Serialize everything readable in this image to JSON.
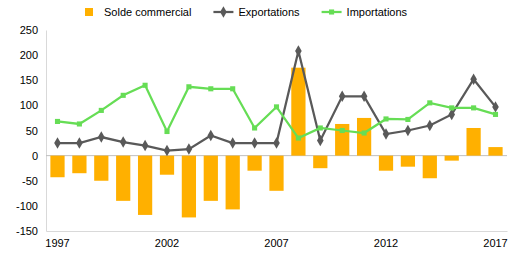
{
  "chart_data": {
    "type": "bar",
    "categories": [
      1997,
      null,
      null,
      null,
      null,
      2002,
      null,
      null,
      null,
      null,
      2007,
      null,
      null,
      null,
      null,
      2012,
      null,
      null,
      null,
      null,
      2017
    ],
    "series": [
      {
        "name": "Solde commercial",
        "type": "bar",
        "color": "#ffb000",
        "values": [
          -43,
          -35,
          -50,
          -90,
          -118,
          -38,
          -123,
          -90,
          -107,
          -30,
          -70,
          175,
          -25,
          63,
          75,
          -30,
          -22,
          -45,
          -10,
          55,
          17
        ]
      },
      {
        "name": "Exportations",
        "type": "line",
        "color": "#595959",
        "marker": "diamond",
        "line_style": "solid",
        "values": [
          25,
          25,
          37,
          27,
          20,
          10,
          13,
          40,
          25,
          25,
          25,
          208,
          30,
          118,
          118,
          43,
          50,
          60,
          82,
          152,
          97
        ]
      },
      {
        "name": "Importations",
        "type": "line",
        "color": "#66dd55",
        "marker": "square",
        "line_style": "solid",
        "values": [
          68,
          63,
          90,
          120,
          140,
          48,
          137,
          133,
          133,
          55,
          97,
          35,
          55,
          50,
          45,
          73,
          72,
          105,
          95,
          95,
          82
        ]
      }
    ],
    "ylim": [
      -150,
      250
    ],
    "yticks": [
      -150,
      -100,
      -50,
      0,
      50,
      100,
      150,
      200,
      250
    ],
    "grid": false,
    "legend": "top"
  }
}
